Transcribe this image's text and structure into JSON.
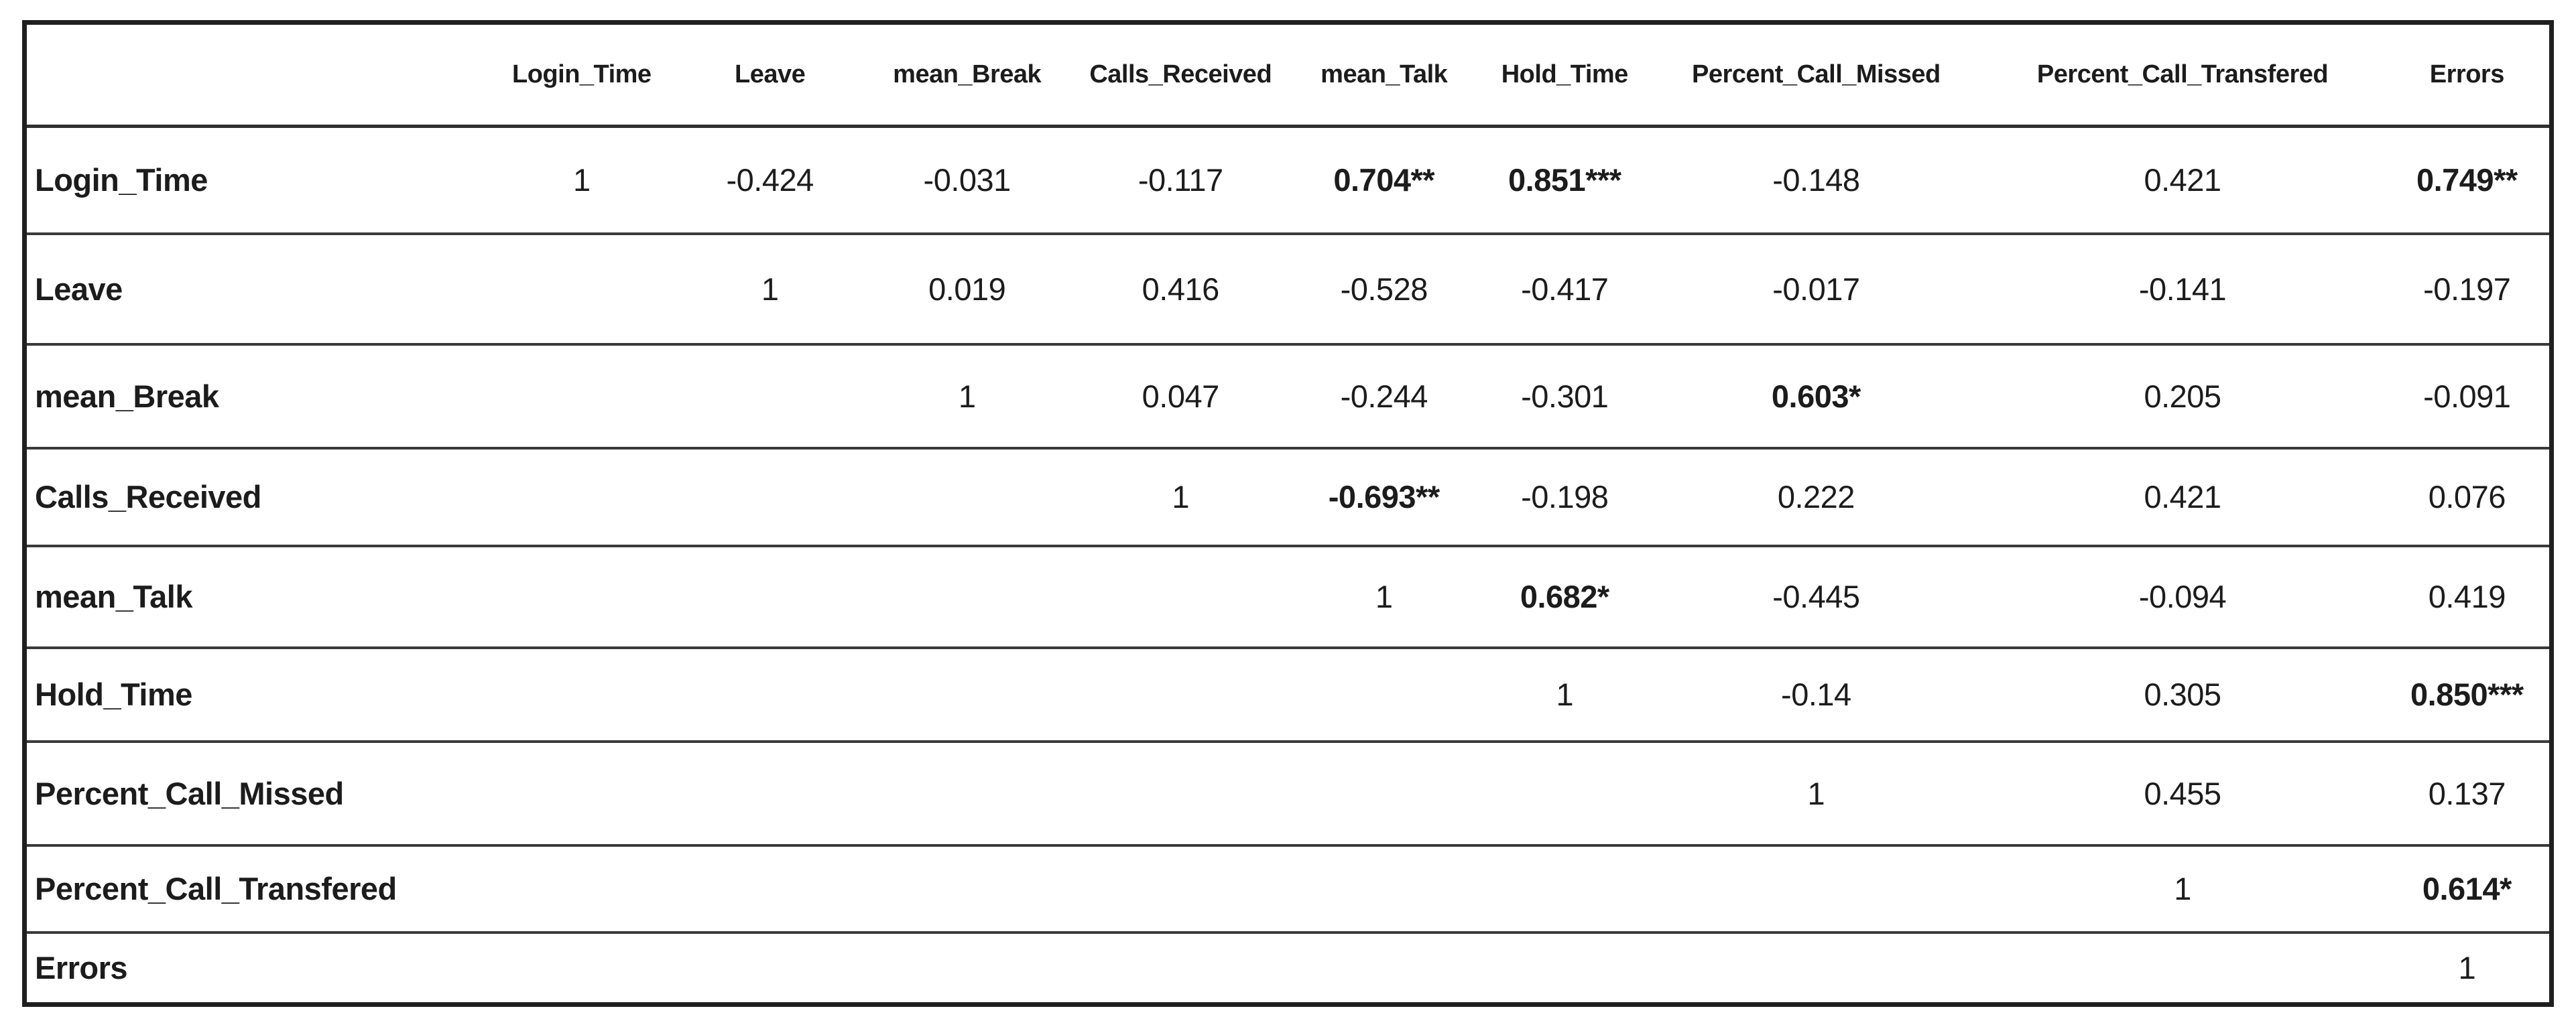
{
  "colors": {
    "background": "#ffffff",
    "text": "#1c1c1c",
    "border": "#2f2f2f"
  },
  "chart_data": {
    "type": "table",
    "description": "Correlation matrix with significance stars",
    "columns": [
      "",
      "Login_Time",
      "Leave",
      "mean_Break",
      "Calls_Received",
      "mean_Talk",
      "Hold_Time",
      "Percent_Call_Missed",
      "Percent_Call_Transfered",
      "Errors"
    ],
    "rows": [
      {
        "label": "Login_Time",
        "cells": [
          "1",
          "-0.424",
          "-0.031",
          "-0.117",
          "0.704**",
          "0.851***",
          "-0.148",
          "0.421",
          "0.749**"
        ]
      },
      {
        "label": "Leave",
        "cells": [
          "",
          "1",
          "0.019",
          "0.416",
          "-0.528",
          "-0.417",
          "-0.017",
          "-0.141",
          "-0.197"
        ]
      },
      {
        "label": "mean_Break",
        "cells": [
          "",
          "",
          "1",
          "0.047",
          "-0.244",
          "-0.301",
          "0.603*",
          "0.205",
          "-0.091"
        ]
      },
      {
        "label": "Calls_Received",
        "cells": [
          "",
          "",
          "",
          "1",
          "-0.693**",
          "-0.198",
          "0.222",
          "0.421",
          "0.076"
        ]
      },
      {
        "label": "mean_Talk",
        "cells": [
          "",
          "",
          "",
          "",
          "1",
          "0.682*",
          "-0.445",
          "-0.094",
          "0.419"
        ]
      },
      {
        "label": "Hold_Time",
        "cells": [
          "",
          "",
          "",
          "",
          "",
          "1",
          "-0.14",
          "0.305",
          "0.850***"
        ]
      },
      {
        "label": "Percent_Call_Missed",
        "cells": [
          "",
          "",
          "",
          "",
          "",
          "",
          "1",
          "0.455",
          "0.137"
        ]
      },
      {
        "label": "Percent_Call_Transfered",
        "cells": [
          "",
          "",
          "",
          "",
          "",
          "",
          "",
          "1",
          "0.614*"
        ]
      },
      {
        "label": "Errors",
        "cells": [
          "",
          "",
          "",
          "",
          "",
          "",
          "",
          "",
          "1"
        ]
      }
    ]
  }
}
